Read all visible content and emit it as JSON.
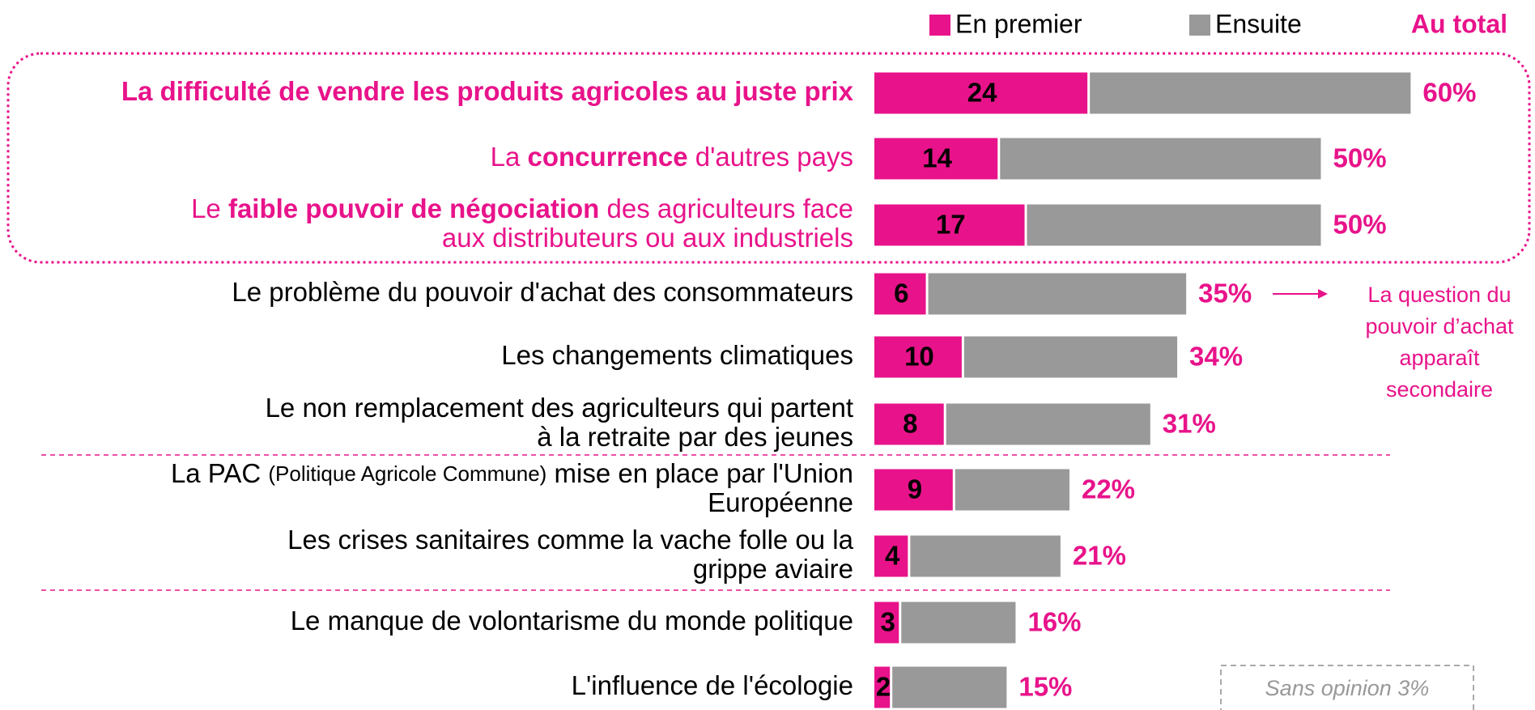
{
  "chart_data": {
    "type": "stacked-bar-horizontal",
    "legend": [
      "En premier",
      "Ensuite"
    ],
    "total_header": "Au total",
    "categories": [
      {
        "color": "#e8138a",
        "lines": [
          [
            {
              "text": "La difficulté de vendre les produits agricoles au juste prix",
              "bold": true
            }
          ]
        ]
      },
      {
        "color": "#e8138a",
        "lines": [
          [
            {
              "text": "La "
            },
            {
              "text": "concurrence",
              "bold": true
            },
            {
              "text": " d'autres pays"
            }
          ]
        ]
      },
      {
        "color": "#e8138a",
        "lines": [
          [
            {
              "text": "Le "
            },
            {
              "text": "faible pouvoir de négociation",
              "bold": true
            },
            {
              "text": " des agriculteurs face"
            }
          ],
          [
            {
              "text": "aux distributeurs ou aux industriels"
            }
          ]
        ]
      },
      {
        "color": "#000000",
        "lines": [
          [
            {
              "text": "Le problème du pouvoir d'achat des consommateurs"
            }
          ]
        ]
      },
      {
        "color": "#000000",
        "lines": [
          [
            {
              "text": "Les changements climatiques"
            }
          ]
        ]
      },
      {
        "color": "#000000",
        "lines": [
          [
            {
              "text": "Le non remplacement des agriculteurs qui partent"
            }
          ],
          [
            {
              "text": "à la retraite par des jeunes"
            }
          ]
        ]
      },
      {
        "color": "#000000",
        "lines": [
          [
            {
              "text": "La PAC "
            },
            {
              "text": "(Politique Agricole Commune)",
              "small": true
            },
            {
              "text": " mise en place par l'Union"
            }
          ],
          [
            {
              "text": "Européenne"
            }
          ]
        ]
      },
      {
        "color": "#000000",
        "lines": [
          [
            {
              "text": "Les crises sanitaires comme la vache folle ou la"
            }
          ],
          [
            {
              "text": "grippe aviaire"
            }
          ]
        ]
      },
      {
        "color": "#000000",
        "lines": [
          [
            {
              "text": "Le manque de volontarisme du monde politique"
            }
          ]
        ]
      },
      {
        "color": "#000000",
        "lines": [
          [
            {
              "text": "L'influence de l'écologie"
            }
          ]
        ]
      }
    ],
    "series": [
      {
        "name": "En premier",
        "color": "#e8138a",
        "values": [
          24,
          14,
          17,
          6,
          10,
          8,
          9,
          4,
          3,
          2
        ]
      },
      {
        "name": "Ensuite",
        "color": "#999999",
        "values": [
          36,
          36,
          33,
          29,
          24,
          23,
          13,
          17,
          13,
          13
        ]
      }
    ],
    "totals": {
      "values": [
        60,
        50,
        50,
        35,
        34,
        31,
        22,
        21,
        16,
        15
      ],
      "value_labels": [
        "60%",
        "50%",
        "50%",
        "35%",
        "34%",
        "31%",
        "22%",
        "21%",
        "16%",
        "15%"
      ]
    },
    "annotation": [
      "La question du",
      "pouvoir d’achat",
      "apparaît",
      "secondaire"
    ],
    "note": "Sans opinion 3%"
  }
}
